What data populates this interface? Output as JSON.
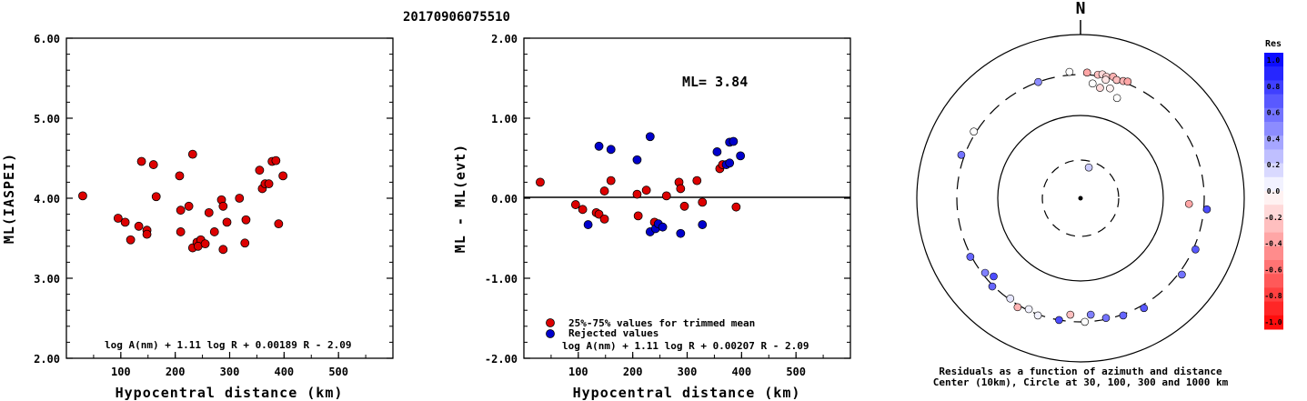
{
  "title": "20170906075510",
  "chart_data": [
    {
      "type": "scatter",
      "xlabel": "Hypocentral distance (km)",
      "ylabel": "ML(IASPEI)",
      "xlim": [
        0,
        600
      ],
      "ylim": [
        2.0,
        6.0
      ],
      "xticks": [
        "100",
        "200",
        "300",
        "400",
        "500"
      ],
      "yticks": [
        "2.00",
        "3.00",
        "4.00",
        "5.00",
        "6.00"
      ],
      "formula": "log A(nm) + 1.11 log R + 0.00189 R - 2.09",
      "marker_color": "#dd0000",
      "points": [
        [
          30,
          4.03
        ],
        [
          95,
          3.75
        ],
        [
          108,
          3.7
        ],
        [
          118,
          3.48
        ],
        [
          133,
          3.65
        ],
        [
          138,
          4.46
        ],
        [
          148,
          3.6
        ],
        [
          148,
          3.55
        ],
        [
          160,
          4.42
        ],
        [
          165,
          4.02
        ],
        [
          208,
          4.28
        ],
        [
          210,
          3.85
        ],
        [
          210,
          3.58
        ],
        [
          225,
          3.9
        ],
        [
          232,
          4.55
        ],
        [
          232,
          3.38
        ],
        [
          240,
          3.45
        ],
        [
          247,
          3.48
        ],
        [
          242,
          3.4
        ],
        [
          255,
          3.43
        ],
        [
          262,
          3.82
        ],
        [
          272,
          3.58
        ],
        [
          285,
          3.98
        ],
        [
          288,
          3.9
        ],
        [
          288,
          3.36
        ],
        [
          295,
          3.7
        ],
        [
          318,
          4.0
        ],
        [
          328,
          3.44
        ],
        [
          330,
          3.73
        ],
        [
          355,
          4.35
        ],
        [
          360,
          4.12
        ],
        [
          365,
          4.18
        ],
        [
          372,
          4.18
        ],
        [
          378,
          4.46
        ],
        [
          385,
          4.47
        ],
        [
          390,
          3.68
        ],
        [
          398,
          4.28
        ]
      ]
    },
    {
      "type": "scatter",
      "xlabel": "Hypocentral distance (km)",
      "ylabel": "ML - ML(evt)",
      "xlim": [
        0,
        600
      ],
      "ylim": [
        -2.0,
        2.0
      ],
      "xticks": [
        "100",
        "200",
        "300",
        "400",
        "500"
      ],
      "yticks": [
        "-2.00",
        "-1.00",
        "0.00",
        "1.00",
        "2.00"
      ],
      "annotation": "ML= 3.84",
      "formula": "log A(nm) + 1.11 log R + 0.00207 R - 2.09",
      "legend": [
        "25%-75% values for trimmed mean",
        "Rejected values"
      ],
      "colors": {
        "trimmed": "#dd0000",
        "rejected": "#0000cc"
      },
      "series": [
        {
          "name": "25%-75% values for trimmed mean",
          "points": [
            [
              30,
              0.2
            ],
            [
              95,
              -0.08
            ],
            [
              108,
              -0.14
            ],
            [
              133,
              -0.18
            ],
            [
              138,
              -0.2
            ],
            [
              148,
              0.09
            ],
            [
              148,
              -0.26
            ],
            [
              160,
              0.22
            ],
            [
              208,
              0.05
            ],
            [
              210,
              -0.22
            ],
            [
              225,
              0.1
            ],
            [
              240,
              -0.3
            ],
            [
              262,
              0.03
            ],
            [
              285,
              0.2
            ],
            [
              288,
              0.12
            ],
            [
              295,
              -0.1
            ],
            [
              318,
              0.22
            ],
            [
              328,
              -0.05
            ],
            [
              360,
              0.37
            ],
            [
              365,
              0.42
            ],
            [
              390,
              -0.11
            ]
          ]
        },
        {
          "name": "Rejected values",
          "points": [
            [
              118,
              -0.33
            ],
            [
              138,
              0.65
            ],
            [
              160,
              0.61
            ],
            [
              208,
              0.48
            ],
            [
              232,
              0.77
            ],
            [
              232,
              -0.42
            ],
            [
              242,
              -0.38
            ],
            [
              247,
              -0.32
            ],
            [
              255,
              -0.36
            ],
            [
              288,
              -0.44
            ],
            [
              328,
              -0.33
            ],
            [
              355,
              0.58
            ],
            [
              372,
              0.42
            ],
            [
              378,
              0.7
            ],
            [
              378,
              0.44
            ],
            [
              385,
              0.71
            ],
            [
              398,
              0.53
            ]
          ]
        }
      ]
    },
    {
      "type": "polar_scatter",
      "north_label": "N",
      "caption_line1": "Residuals as a function of azimuth and distance",
      "caption_line2": "Center (10km), Circle at 30, 100, 300 and 1000 km",
      "colorbar_title": "Res",
      "colorbar_ticks": [
        "1.0",
        "0.8",
        "0.6",
        "0.4",
        "0.2",
        "0.0",
        "-0.2",
        "-0.4",
        "-0.6",
        "-0.8",
        "-1.0"
      ],
      "colorbar_range": [
        -1.0,
        1.0
      ],
      "rings_km": [
        30,
        100,
        300,
        1000
      ],
      "stations": [
        {
          "az": -20,
          "dist": 300,
          "res": 0.45
        },
        {
          "az": -5,
          "dist": 330,
          "res": 0.0
        },
        {
          "az": 3,
          "dist": 320,
          "res": -0.35
        },
        {
          "az": 8,
          "dist": 310,
          "res": -0.25
        },
        {
          "az": 10,
          "dist": 320,
          "res": -0.15
        },
        {
          "az": 12,
          "dist": 305,
          "res": -0.2
        },
        {
          "az": 12,
          "dist": 280,
          "res": -0.1
        },
        {
          "az": 15,
          "dist": 320,
          "res": -0.3
        },
        {
          "az": 17,
          "dist": 300,
          "res": -0.25
        },
        {
          "az": 20,
          "dist": 310,
          "res": -0.3
        },
        {
          "az": 22,
          "dist": 320,
          "res": -0.35
        },
        {
          "az": 6,
          "dist": 240,
          "res": 0.0
        },
        {
          "az": 10,
          "dist": 220,
          "res": -0.15
        },
        {
          "az": 15,
          "dist": 230,
          "res": -0.05
        },
        {
          "az": 20,
          "dist": 190,
          "res": 0.0
        },
        {
          "az": -58,
          "dist": 320,
          "res": 0.0
        },
        {
          "az": -70,
          "dist": 330,
          "res": 0.55
        },
        {
          "az": 15,
          "dist": 25,
          "res": 0.2
        },
        {
          "az": 93,
          "dist": 200,
          "res": -0.35
        },
        {
          "az": 95,
          "dist": 330,
          "res": 0.7
        },
        {
          "az": 114,
          "dist": 320,
          "res": 0.65
        },
        {
          "az": 127,
          "dist": 330,
          "res": 0.55
        },
        {
          "az": 150,
          "dist": 330,
          "res": 0.65
        },
        {
          "az": 160,
          "dist": 310,
          "res": 0.6
        },
        {
          "az": 168,
          "dist": 290,
          "res": 0.55
        },
        {
          "az": 178,
          "dist": 300,
          "res": 0.0
        },
        {
          "az": 175,
          "dist": 250,
          "res": 0.5
        },
        {
          "az": 185,
          "dist": 250,
          "res": -0.25
        },
        {
          "az": 190,
          "dist": 300,
          "res": 0.7
        },
        {
          "az": 200,
          "dist": 310,
          "res": 0.05
        },
        {
          "az": 205,
          "dist": 290,
          "res": 0.05
        },
        {
          "az": 210,
          "dist": 320,
          "res": -0.3
        },
        {
          "az": 215,
          "dist": 290,
          "res": 0.1
        },
        {
          "az": 225,
          "dist": 310,
          "res": 0.6
        },
        {
          "az": 228,
          "dist": 250,
          "res": 0.7
        },
        {
          "az": 232,
          "dist": 280,
          "res": 0.5
        },
        {
          "az": 242,
          "dist": 310,
          "res": 0.6
        }
      ]
    }
  ]
}
